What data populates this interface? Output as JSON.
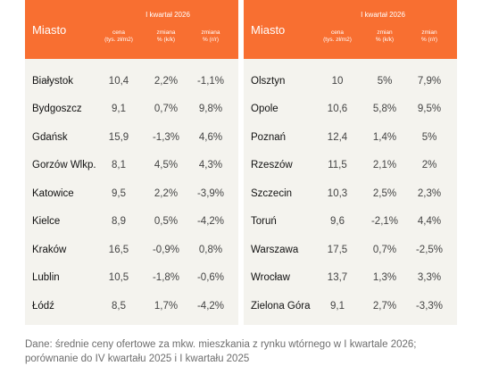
{
  "header": {
    "city_label": "Miasto",
    "quarter_label": "I kwartał 2026",
    "left_cols": [
      "cena\n(tys. zł/m2)",
      "zmiana\n% (k/k)",
      "zmiana\n% (r/r)"
    ],
    "right_cols": [
      "cena\n(tys. zł/m2)",
      "zmian\n% (k/k)",
      "zmian\n% (r/r)"
    ]
  },
  "left_rows": [
    {
      "city": "Białystok",
      "price": "10,4",
      "qq": "2,2%",
      "yy": "-1,1%"
    },
    {
      "city": "Bydgoszcz",
      "price": "9,1",
      "qq": "0,7%",
      "yy": "9,8%"
    },
    {
      "city": "Gdańsk",
      "price": "15,9",
      "qq": "-1,3%",
      "yy": "4,6%"
    },
    {
      "city": "Gorzów Wlkp.",
      "price": "8,1",
      "qq": "4,5%",
      "yy": "4,3%"
    },
    {
      "city": "Katowice",
      "price": "9,5",
      "qq": "2,2%",
      "yy": "-3,9%"
    },
    {
      "city": "Kielce",
      "price": "8,9",
      "qq": "0,5%",
      "yy": "-4,2%"
    },
    {
      "city": "Kraków",
      "price": "16,5",
      "qq": "-0,9%",
      "yy": "0,8%"
    },
    {
      "city": "Lublin",
      "price": "10,5",
      "qq": "-1,8%",
      "yy": "-0,6%"
    },
    {
      "city": "Łódź",
      "price": "8,5",
      "qq": "1,7%",
      "yy": "-4,2%"
    }
  ],
  "right_rows": [
    {
      "city": "Olsztyn",
      "price": "10",
      "qq": "5%",
      "yy": "7,9%"
    },
    {
      "city": "Opole",
      "price": "10,6",
      "qq": "5,8%",
      "yy": "9,5%"
    },
    {
      "city": "Poznań",
      "price": "12,4",
      "qq": "1,4%",
      "yy": "5%"
    },
    {
      "city": "Rzeszów",
      "price": "11,5",
      "qq": "2,1%",
      "yy": "2%"
    },
    {
      "city": "Szczecin",
      "price": "10,3",
      "qq": "2,5%",
      "yy": "2,3%"
    },
    {
      "city": "Toruń",
      "price": "9,6",
      "qq": "-2,1%",
      "yy": "4,4%"
    },
    {
      "city": "Warszawa",
      "price": "17,5",
      "qq": "0,7%",
      "yy": "-2,5%"
    },
    {
      "city": "Wrocław",
      "price": "13,7",
      "qq": "1,3%",
      "yy": "3,3%"
    },
    {
      "city": "Zielona Góra",
      "price": "9,1",
      "qq": "2,7%",
      "yy": "-3,3%"
    }
  ],
  "footnote": "Dane: średnie ceny ofertowe za mkw. mieszkania z rynku wtórnego w I kwartale 2026; porównanie do IV kwartału 2025 i I kwartału 2025",
  "colors": {
    "accent": "#f86f31",
    "panel": "#f4f3ee"
  }
}
